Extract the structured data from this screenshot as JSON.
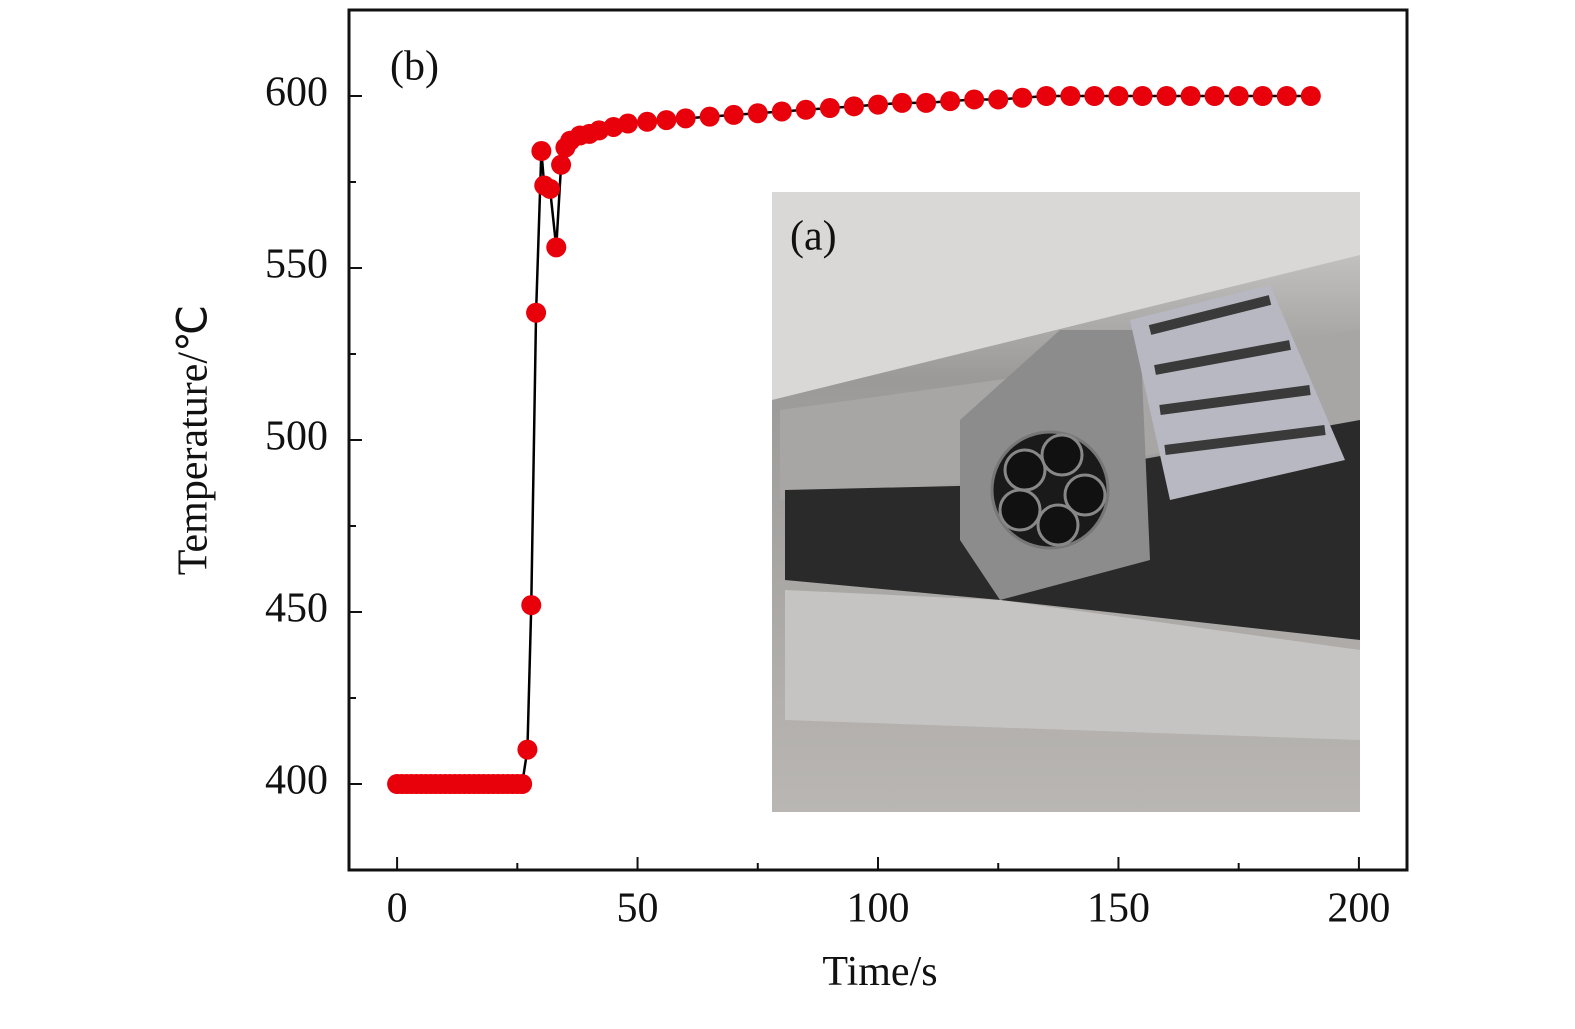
{
  "chart_data": {
    "type": "scatter-line",
    "xlabel": "Time/s",
    "ylabel": "Temperature/℃",
    "annotations": [
      "(b)",
      "(a)"
    ],
    "x": [
      0,
      1,
      2,
      3,
      4,
      5,
      6,
      7,
      8,
      9,
      10,
      11,
      12,
      13,
      14,
      15,
      16,
      17,
      18,
      19,
      20,
      21,
      22,
      23,
      24,
      25,
      26,
      27.1,
      27.9,
      28.9,
      30,
      30.6,
      31.8,
      33.1,
      34.1,
      35,
      36,
      38,
      40,
      42,
      45,
      48,
      52,
      56,
      60,
      65,
      70,
      75,
      80,
      85,
      90,
      95,
      100,
      105,
      110,
      115,
      120,
      125,
      130,
      135,
      140,
      145,
      150,
      155,
      160,
      165,
      170,
      175,
      180,
      185,
      190
    ],
    "values": [
      400,
      400,
      400,
      400,
      400,
      400,
      400,
      400,
      400,
      400,
      400,
      400,
      400,
      400,
      400,
      400,
      400,
      400,
      400,
      400,
      400,
      400,
      400,
      400,
      400,
      400,
      400,
      410,
      452,
      537,
      584,
      574,
      573,
      556,
      580,
      585,
      587,
      588.5,
      589,
      590,
      591,
      592,
      592.5,
      593,
      593.5,
      594,
      594.5,
      595,
      595.5,
      596,
      596.5,
      597,
      597.5,
      598,
      598,
      598.5,
      599,
      599,
      599.5,
      600,
      600,
      600,
      600,
      600,
      600,
      600,
      600,
      600,
      600,
      600,
      600
    ],
    "color": "#e8000b",
    "line_color": "#000000",
    "xlim": [
      -10,
      210
    ],
    "ylim": [
      375,
      625
    ],
    "xticks": [
      0,
      50,
      100,
      150,
      200
    ],
    "yticks": [
      400,
      450,
      500,
      550,
      600
    ],
    "xminorticks": [
      25,
      75,
      125,
      175
    ],
    "yminorticks": [
      425,
      475,
      525,
      575
    ]
  }
}
